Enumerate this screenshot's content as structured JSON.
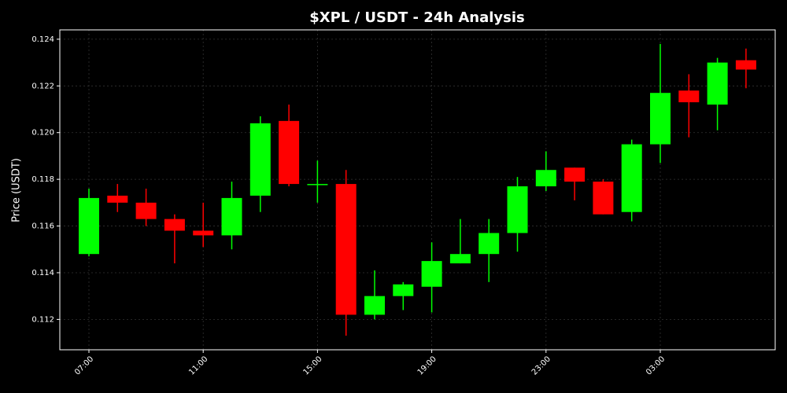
{
  "chart_data": {
    "type": "candlestick",
    "title": "$XPL / USDT - 24h Analysis",
    "y_label": "Price (USDT)",
    "categories": [
      "07:00",
      null,
      null,
      null,
      "11:00",
      null,
      null,
      null,
      "15:00",
      null,
      null,
      null,
      "19:00",
      null,
      null,
      null,
      "23:00",
      null,
      null,
      null,
      "03:00",
      null,
      null,
      null
    ],
    "open": [
      0.1148,
      0.1173,
      0.117,
      0.1163,
      0.1158,
      0.1156,
      0.1173,
      0.1205,
      0.1178,
      0.1178,
      0.1122,
      0.113,
      0.1134,
      0.1144,
      0.1148,
      0.1157,
      0.1177,
      0.1185,
      0.1179,
      0.1166,
      0.1195,
      0.1218,
      0.1212,
      0.1231
    ],
    "high": [
      0.1176,
      0.1178,
      0.1176,
      0.1165,
      0.117,
      0.1179,
      0.1207,
      0.1212,
      0.1188,
      0.1184,
      0.1141,
      0.1136,
      0.1153,
      0.1163,
      0.1163,
      0.1181,
      0.1192,
      0.1185,
      0.118,
      0.1197,
      0.1238,
      0.1225,
      0.1232,
      0.1236
    ],
    "low": [
      0.1147,
      0.1166,
      0.116,
      0.1144,
      0.1151,
      0.115,
      0.1166,
      0.1177,
      0.117,
      0.1113,
      0.112,
      0.1124,
      0.1123,
      0.1144,
      0.1136,
      0.1149,
      0.1175,
      0.1171,
      0.1165,
      0.1162,
      0.1187,
      0.1198,
      0.1201,
      0.1219
    ],
    "close": [
      0.1172,
      0.117,
      0.1163,
      0.1158,
      0.1156,
      0.1172,
      0.1204,
      0.1178,
      0.1178,
      0.1122,
      0.113,
      0.1135,
      0.1145,
      0.1148,
      0.1157,
      0.1177,
      0.1184,
      0.1179,
      0.1165,
      0.1195,
      0.1217,
      0.1213,
      0.123,
      0.1227
    ],
    "up_color": "#00ff00",
    "down_color": "#ff0000",
    "ylim": [
      0.1107,
      0.1244
    ],
    "yticks": [
      0.112,
      0.114,
      0.116,
      0.118,
      {
        "value": 0.12,
        "label": "0.120"
      },
      0.122,
      0.124
    ],
    "grid": true
  }
}
